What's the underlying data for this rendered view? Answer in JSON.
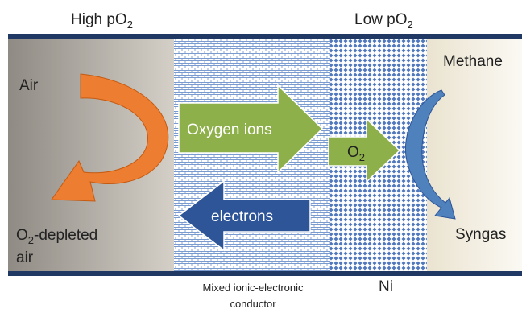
{
  "labels": {
    "high_po2": {
      "main": "High pO",
      "sub": "2"
    },
    "low_po2": {
      "main": "Low pO",
      "sub": "2"
    },
    "air": "Air",
    "o2_depleted": {
      "main": "O",
      "sub": "2",
      "rest": "-depleted"
    },
    "o2_depleted_line2": "air",
    "oxygen_ions": "Oxygen ions",
    "o2": {
      "main": "O",
      "sub": "2"
    },
    "electrons": "electrons",
    "methane": "Methane",
    "syngas": "Syngas",
    "mixed_line1": "Mixed ionic-electronic",
    "mixed_line2": "conductor",
    "ni": "Ni"
  }
}
